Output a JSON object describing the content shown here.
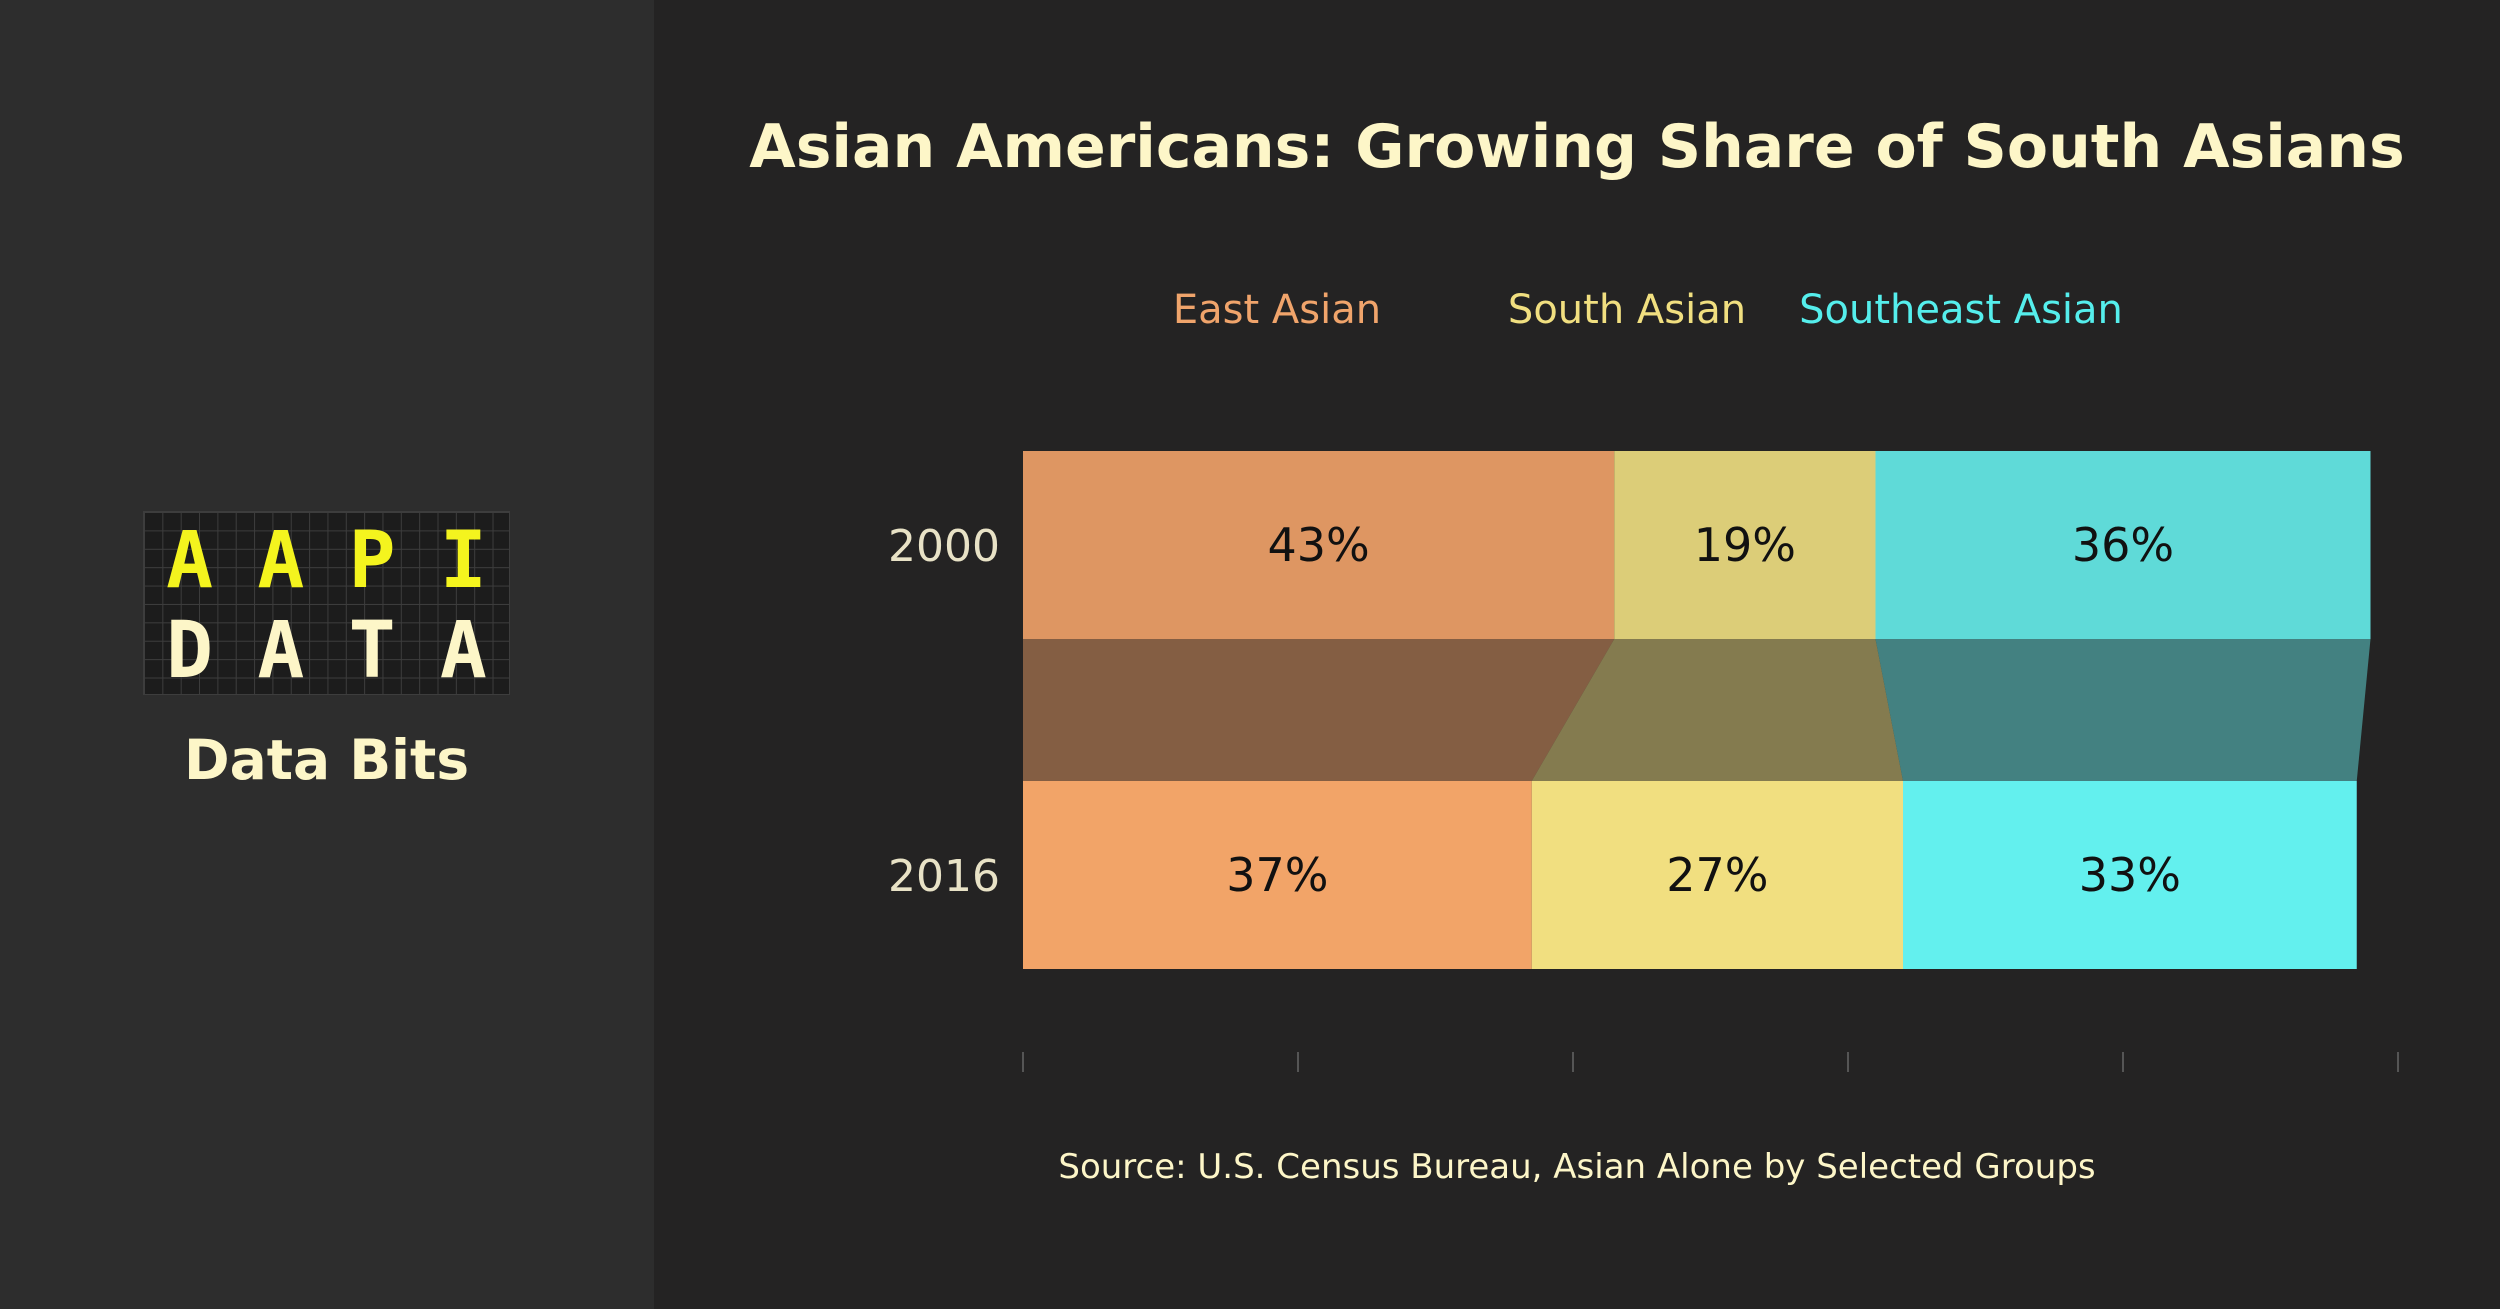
{
  "logo": {
    "top_letters": [
      "A",
      "A",
      "P",
      "I"
    ],
    "bottom_letters": [
      "D",
      "A",
      "T",
      "A"
    ]
  },
  "sidebar": {
    "subtitle": "Data Bits"
  },
  "chart_data": {
    "type": "bar",
    "orientation": "horizontal-stacked-100",
    "title": "Asian Americans: Growing Share of South Asians",
    "categories": [
      "2000",
      "2016"
    ],
    "series": [
      {
        "name": "East Asian",
        "values": [
          43,
          37
        ],
        "labels": [
          "43%",
          "37%"
        ],
        "color": "#de9662",
        "color_2016": "#f2a468",
        "legend_color": "#f0a46b"
      },
      {
        "name": "South Asian",
        "values": [
          19,
          27
        ],
        "labels": [
          "19%",
          "27%"
        ],
        "color": "#dccd78",
        "color_2016": "#f1df80",
        "legend_color": "#f1df80"
      },
      {
        "name": "Southeast Asian",
        "values": [
          36,
          33
        ],
        "labels": [
          "36%",
          "33%"
        ],
        "color": "#5fdad8",
        "color_2016": "#63f0ee",
        "legend_color": "#55eeec"
      }
    ],
    "xlim": [
      0,
      100
    ],
    "legend_position": "top",
    "grid": false,
    "source": "Source: U.S. Census Bureau, Asian Alone by Selected Groups"
  }
}
